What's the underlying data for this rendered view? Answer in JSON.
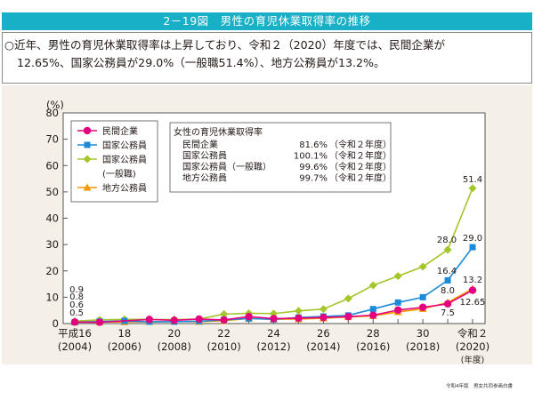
{
  "figure": {
    "title": "2－19図　男性の育児休業取得率の推移",
    "summary_line1": "○近年、男性の育児休業取得率は上昇しており、令和２（2020）年度では、民間企業が",
    "summary_line2": "12.65%、国家公務員が29.0%（一般職51.4%）、地方公務員が13.2%。",
    "source": "令和4年版　男女共同参画白書"
  },
  "female_box": {
    "title": "女性の育児休業取得率",
    "rows": [
      {
        "label": "民間企業",
        "value": "81.6%",
        "note": "（令和２年度）"
      },
      {
        "label": "国家公務員",
        "value": "100.1%",
        "note": "（令和２年度）"
      },
      {
        "label": "国家公務員（一般職）",
        "value": "99.6%",
        "note": "（令和２年度）"
      },
      {
        "label": "地方公務員",
        "value": "99.7%",
        "note": "（令和２年度）"
      }
    ]
  },
  "chart_data": {
    "type": "line",
    "title": "男性の育児休業取得率の推移",
    "ylabel": "(%)",
    "xlabel": "(年度)",
    "ylim": [
      0,
      80
    ],
    "yticks": [
      0,
      10,
      20,
      30,
      40,
      50,
      60,
      70,
      80
    ],
    "x": [
      2004,
      2005,
      2006,
      2007,
      2008,
      2009,
      2010,
      2011,
      2012,
      2013,
      2014,
      2015,
      2016,
      2017,
      2018,
      2019,
      2020
    ],
    "xtick_labels": [
      {
        "x": 2004,
        "line1": "平成16",
        "line2": "(2004)"
      },
      {
        "x": 2006,
        "line1": "18",
        "line2": "(2006)"
      },
      {
        "x": 2008,
        "line1": "20",
        "line2": "(2008)"
      },
      {
        "x": 2010,
        "line1": "22",
        "line2": "(2010)"
      },
      {
        "x": 2012,
        "line1": "24",
        "line2": "(2012)"
      },
      {
        "x": 2014,
        "line1": "26",
        "line2": "(2014)"
      },
      {
        "x": 2016,
        "line1": "28",
        "line2": "(2016)"
      },
      {
        "x": 2018,
        "line1": "30",
        "line2": "(2018)"
      },
      {
        "x": 2020,
        "line1": "令和２",
        "line2": "(2020)",
        "line3": "(年度)"
      }
    ],
    "grid": false,
    "legend_position": "top-left",
    "series": [
      {
        "name": "民間企業",
        "color": "#e4007f",
        "marker": "circle",
        "values": [
          0.56,
          0.5,
          null,
          1.56,
          1.23,
          1.72,
          1.38,
          2.63,
          1.89,
          2.03,
          2.3,
          2.65,
          3.16,
          5.14,
          6.16,
          7.48,
          12.65
        ]
      },
      {
        "name": "国家公務員",
        "color": "#1c8ad8",
        "marker": "square",
        "values": [
          0.5,
          0.8,
          1.0,
          0.7,
          0.7,
          0.9,
          1.4,
          1.9,
          1.6,
          2.3,
          2.7,
          3.1,
          5.5,
          8.0,
          10.0,
          16.4,
          29.0
        ]
      },
      {
        "name": "国家公務員（一般職）",
        "color": "#a3c62a",
        "marker": "diamond",
        "values": [
          0.9,
          1.4,
          1.6,
          1.6,
          1.5,
          1.7,
          3.6,
          3.9,
          3.8,
          4.8,
          5.5,
          9.5,
          14.5,
          18.0,
          21.6,
          28.0,
          51.4
        ]
      },
      {
        "name": "地方公務員",
        "color": "#f39800",
        "marker": "triangle",
        "values": [
          0.6,
          0.6,
          0.6,
          0.7,
          0.8,
          0.7,
          1.1,
          1.9,
          1.6,
          1.7,
          2.0,
          2.5,
          2.9,
          4.4,
          5.6,
          8.0,
          13.2
        ]
      }
    ],
    "annotations": [
      {
        "text": "0.9",
        "x": 2004,
        "series": "国家公務員（一般職）"
      },
      {
        "text": "0.8",
        "x": 2004
      },
      {
        "text": "0.6",
        "x": 2004
      },
      {
        "text": "0.5",
        "x": 2004
      },
      {
        "text": "51.4",
        "x": 2020,
        "series": "国家公務員（一般職）"
      },
      {
        "text": "29.0",
        "x": 2020,
        "series": "国家公務員"
      },
      {
        "text": "28.0",
        "x": 2019,
        "series": "国家公務員（一般職）"
      },
      {
        "text": "16.4",
        "x": 2019,
        "series": "国家公務員"
      },
      {
        "text": "13.2",
        "x": 2020,
        "series": "地方公務員"
      },
      {
        "text": "12.65",
        "x": 2020,
        "series": "民間企業"
      },
      {
        "text": "8.0",
        "x": 2019,
        "series": "地方公務員"
      },
      {
        "text": "7.5",
        "x": 2019,
        "series": "民間企業"
      }
    ],
    "legend": [
      {
        "label": "民間企業"
      },
      {
        "label": "国家公務員"
      },
      {
        "label": "国家公務員",
        "label2": "(一般職)"
      },
      {
        "label": "地方公務員"
      }
    ]
  }
}
